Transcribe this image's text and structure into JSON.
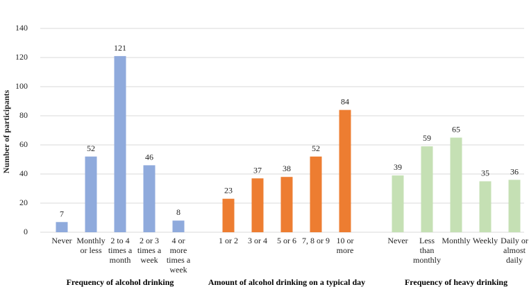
{
  "chart_data": {
    "type": "bar",
    "y_label": "Number of participants",
    "ylim": [
      0,
      140
    ],
    "yticks": [
      0,
      20,
      40,
      60,
      80,
      100,
      120,
      140
    ],
    "grid": true,
    "groups": [
      {
        "name": "Frequency of alcohol drinking",
        "color": "#8faadc",
        "categories": [
          "Never",
          "Monthly or less",
          "2 to 4 times a month",
          "2 or 3 times a week",
          "4 or more times a week"
        ],
        "values": [
          7,
          52,
          121,
          46,
          8
        ]
      },
      {
        "name": "Amount of alcohol drinking on a typical day",
        "color": "#ed7d31",
        "categories": [
          "1 or 2",
          "3 or 4",
          "5 or 6",
          "7, 8 or 9",
          "10 or more"
        ],
        "values": [
          23,
          37,
          38,
          52,
          84
        ]
      },
      {
        "name": "Frequency of heavy drinking",
        "color": "#c5e0b4",
        "categories": [
          "Never",
          "Less than monthly",
          "Monthly",
          "Weekly",
          "Daily or almost daily"
        ],
        "values": [
          39,
          59,
          65,
          35,
          36
        ]
      }
    ]
  }
}
